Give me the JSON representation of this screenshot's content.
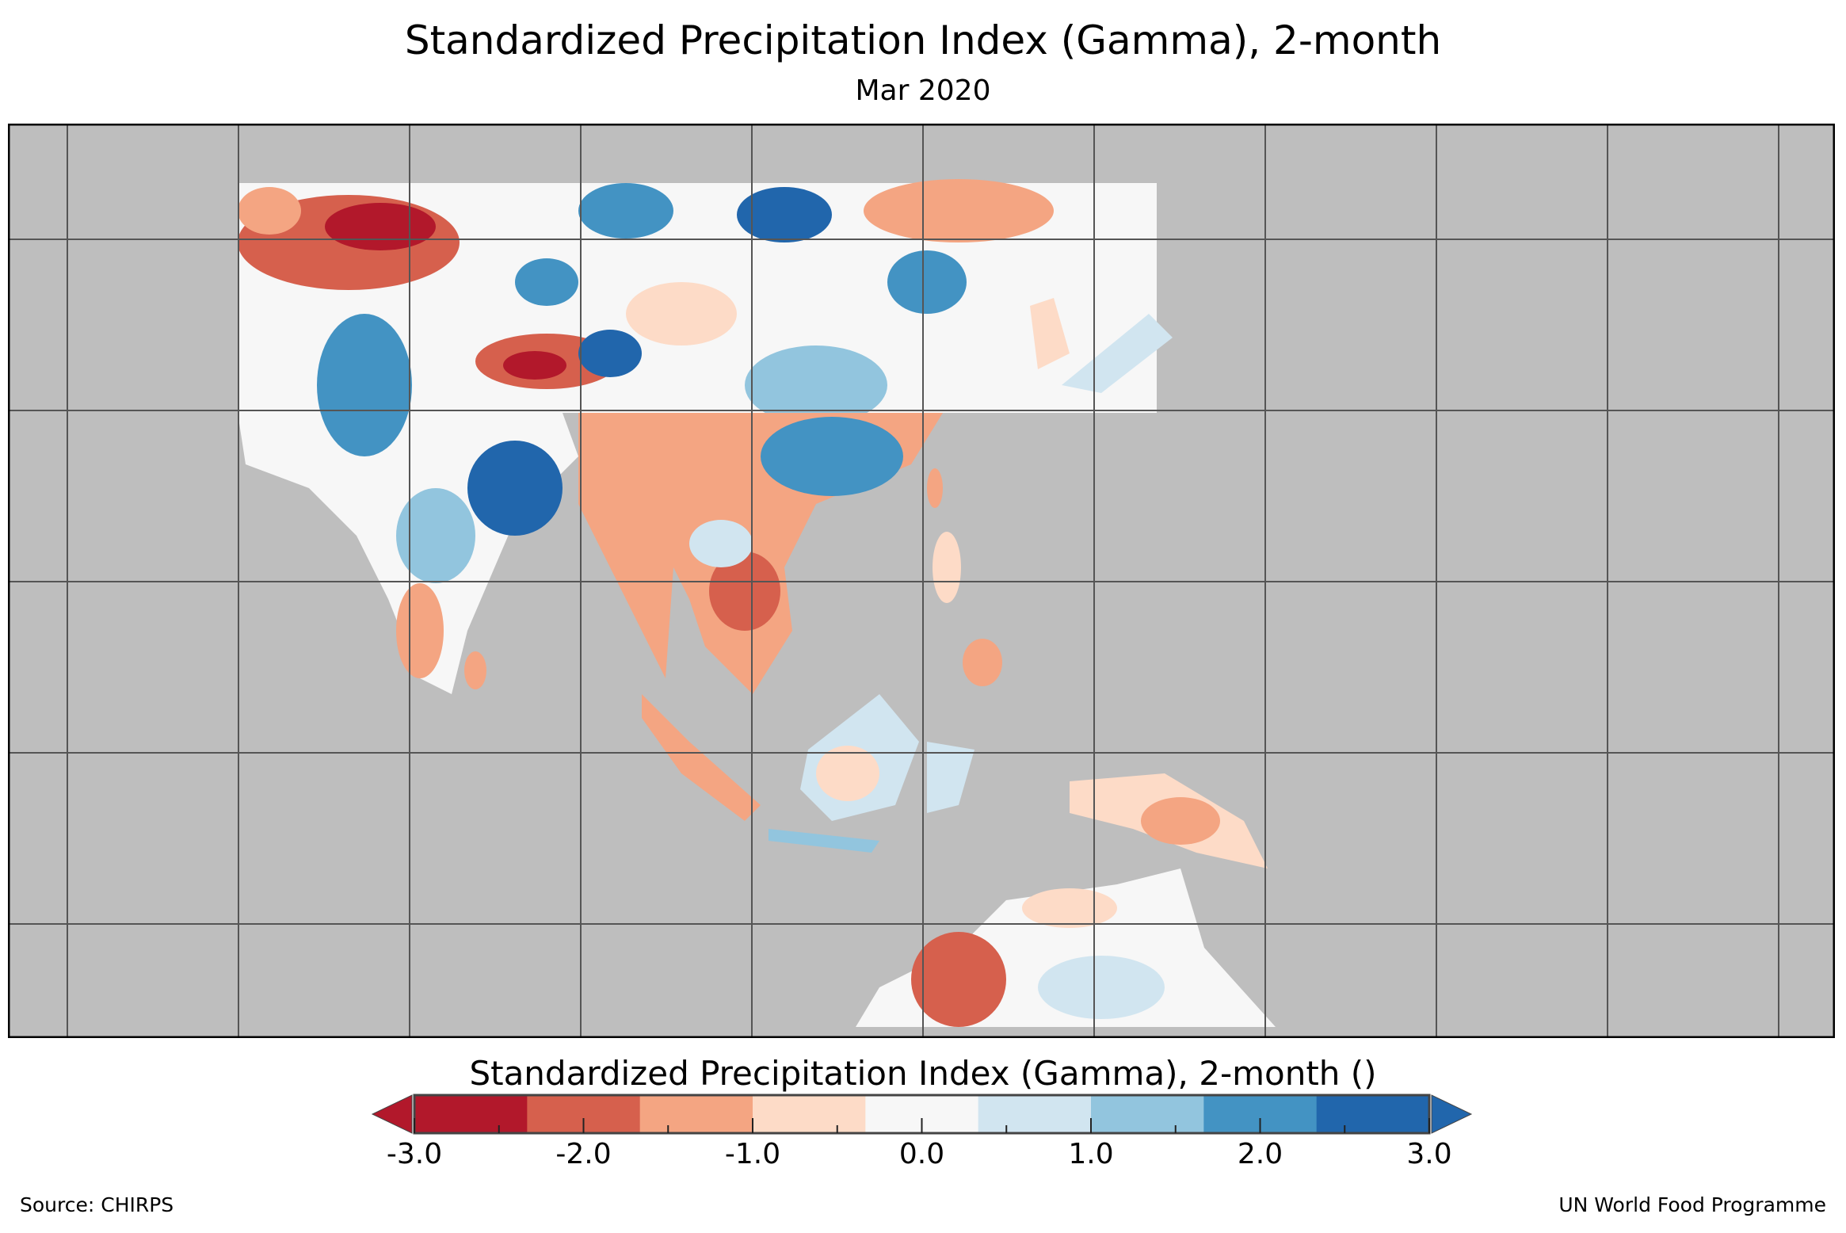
{
  "header": {
    "title": "Standardized Precipitation Index (Gamma), 2-month",
    "subtitle": "Mar 2020"
  },
  "legend": {
    "title": "Standardized Precipitation Index (Gamma), 2-month ()",
    "tick_labels": [
      "-3.0",
      "-2.0",
      "-1.0",
      "0.0",
      "1.0",
      "2.0",
      "3.0"
    ],
    "range": [
      -3.0,
      3.0
    ],
    "colors": [
      "#b2182b",
      "#d6604d",
      "#f4a582",
      "#fddbc7",
      "#f7f7f7",
      "#d1e5f0",
      "#92c5de",
      "#4393c3",
      "#2166ac"
    ],
    "ocean_color": "#bebebe"
  },
  "footer": {
    "source": "Source: CHIRPS",
    "credit": "UN World Food Programme"
  }
}
